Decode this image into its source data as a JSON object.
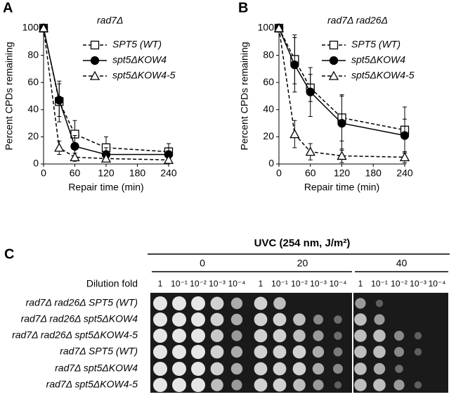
{
  "chart_data": [
    {
      "type": "line",
      "panel": "A",
      "title": "rad7Δ",
      "x_label": "Repair time (min)",
      "y_label": "Percent CPDs remaining",
      "x": [
        0,
        30,
        60,
        120,
        240
      ],
      "xlim": [
        0,
        240
      ],
      "xticks": [
        0,
        60,
        120,
        180,
        240
      ],
      "ylim": [
        0,
        100
      ],
      "yticks": [
        0,
        20,
        40,
        60,
        80,
        100
      ],
      "series": [
        {
          "name": "SPT5 (WT)",
          "color": "#000000",
          "marker": "square",
          "dashed": true,
          "values": [
            100,
            46,
            22,
            12,
            9
          ],
          "errors": [
            0,
            15,
            10,
            8,
            6
          ]
        },
        {
          "name": "spt5ΔKOW4",
          "color": "#000000",
          "marker": "circle",
          "dashed": false,
          "values": [
            100,
            47,
            13,
            7,
            7
          ],
          "errors": [
            0,
            12,
            8,
            5,
            5
          ]
        },
        {
          "name": "spt5ΔKOW4-5",
          "color": "#000000",
          "marker": "triangle",
          "dashed": true,
          "values": [
            100,
            12,
            5,
            4,
            3
          ],
          "errors": [
            0,
            5,
            3,
            2,
            2
          ]
        }
      ]
    },
    {
      "type": "line",
      "panel": "B",
      "title": "rad7Δ rad26Δ",
      "x_label": "Repair time (min)",
      "y_label": "Percent CPDs remaining",
      "x": [
        0,
        30,
        60,
        120,
        240
      ],
      "xlim": [
        0,
        240
      ],
      "xticks": [
        0,
        60,
        120,
        180,
        240
      ],
      "ylim": [
        0,
        100
      ],
      "yticks": [
        0,
        20,
        40,
        60,
        80,
        100
      ],
      "series": [
        {
          "name": "SPT5 (WT)",
          "color": "#000000",
          "marker": "square",
          "dashed": true,
          "values": [
            100,
            77,
            56,
            34,
            25
          ],
          "errors": [
            0,
            18,
            10,
            17,
            17
          ]
        },
        {
          "name": "spt5ΔKOW4",
          "color": "#000000",
          "marker": "circle",
          "dashed": false,
          "values": [
            100,
            73,
            53,
            30,
            21
          ],
          "errors": [
            0,
            20,
            18,
            20,
            12
          ]
        },
        {
          "name": "spt5ΔKOW4-5",
          "color": "#000000",
          "marker": "triangle",
          "dashed": true,
          "values": [
            100,
            22,
            9,
            6,
            5
          ],
          "errors": [
            0,
            10,
            6,
            5,
            4
          ]
        }
      ]
    }
  ],
  "panel_c": {
    "label": "C",
    "treatment": "UVC (254 nm, J/m²)",
    "doses": [
      "0",
      "20",
      "40"
    ],
    "dilution_label": "Dilution fold",
    "dilutions": [
      "1",
      "10⁻¹",
      "10⁻²",
      "10⁻³",
      "10⁻⁴"
    ],
    "strains": [
      "rad7Δ rad26Δ SPT5 (WT)",
      "rad7Δ rad26Δ spt5ΔKOW4",
      "rad7Δ rad26Δ spt5ΔKOW4-5",
      "rad7Δ SPT5 (WT)",
      "rad7Δ spt5ΔKOW4",
      "rad7Δ spt5ΔKOW4-5"
    ]
  }
}
